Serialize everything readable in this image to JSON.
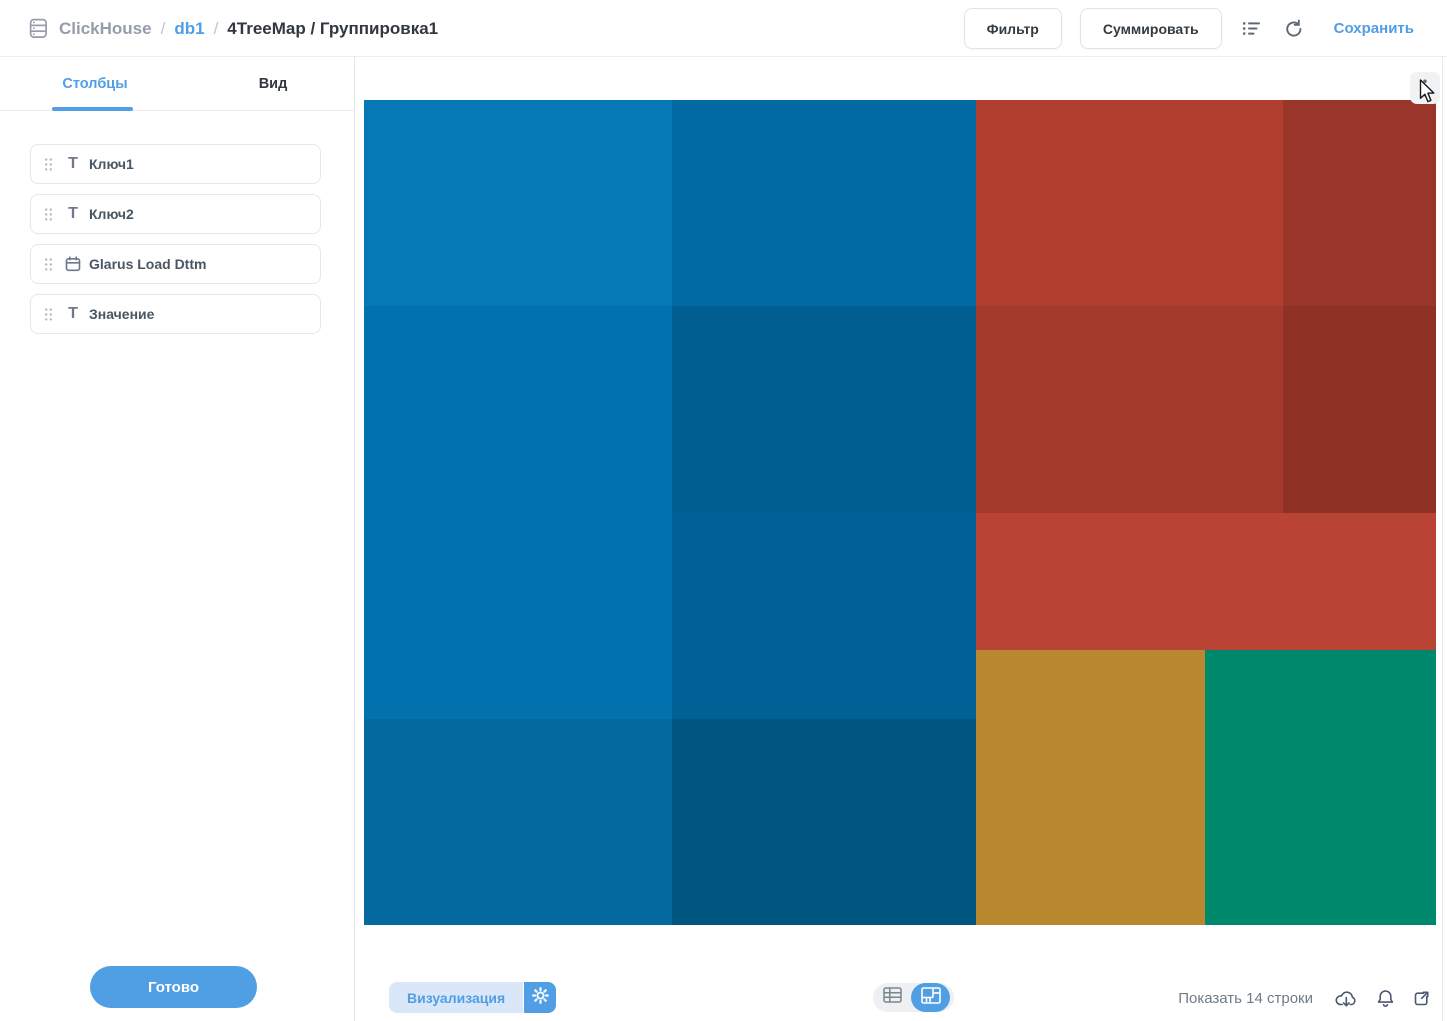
{
  "header": {
    "breadcrumb": {
      "database": "ClickHouse",
      "separator": "/",
      "schema": "db1",
      "question_title": "4TreeMap / Группировка1"
    },
    "filter_label": "Фильтр",
    "summarize_label": "Суммировать",
    "save_label": "Сохранить"
  },
  "sidebar": {
    "tabs": [
      {
        "label": "Столбцы",
        "active": true
      },
      {
        "label": "Вид",
        "active": false
      }
    ],
    "fields": [
      {
        "label": "Ключ1",
        "type": "text"
      },
      {
        "label": "Ключ2",
        "type": "text"
      },
      {
        "label": "Glarus Load Dttm",
        "type": "datetime"
      },
      {
        "label": "Значение",
        "type": "text"
      }
    ],
    "done_label": "Готово"
  },
  "footer": {
    "visualization_label": "Визуализация",
    "rows_label": "Показать 14 строки"
  },
  "colors": {
    "brand": "#509ee3",
    "brand_light": "#d9e7f8",
    "text_dark": "#32383e",
    "text_medium": "#4a5664",
    "text_gray": "#969cac",
    "border": "#e3e6ea"
  },
  "chart_data": {
    "type": "treemap",
    "rows_shown": 14,
    "cells": [
      {
        "id": "blue1-top",
        "color": "#0579B6",
        "x": 0,
        "y": 0,
        "w": 0.2873,
        "h": 0.2497,
        "area_pct": 7.2
      },
      {
        "id": "blue1-mid",
        "color": "#0272AE",
        "x": 0,
        "y": 0.2497,
        "w": 0.2873,
        "h": 0.5006,
        "area_pct": 14.4
      },
      {
        "id": "blue1-bottom",
        "color": "#04699F",
        "x": 0,
        "y": 0.7503,
        "w": 0.2873,
        "h": 0.2497,
        "area_pct": 7.2
      },
      {
        "id": "blue2-r1",
        "color": "#016AA2",
        "x": 0.2873,
        "y": 0,
        "w": 0.2836,
        "h": 0.2497,
        "area_pct": 7.1
      },
      {
        "id": "blue2-r2",
        "color": "#005E90",
        "x": 0.2873,
        "y": 0.2497,
        "w": 0.2836,
        "h": 0.2509,
        "area_pct": 7.1
      },
      {
        "id": "blue2-r3",
        "color": "#006197",
        "x": 0.2873,
        "y": 0.5006,
        "w": 0.2836,
        "h": 0.2497,
        "area_pct": 7.1
      },
      {
        "id": "blue2-r4",
        "color": "#005681",
        "x": 0.2873,
        "y": 0.7503,
        "w": 0.2836,
        "h": 0.2497,
        "area_pct": 7.1
      },
      {
        "id": "red1-top",
        "color": "#B03F2F",
        "x": 0.5709,
        "y": 0,
        "w": 0.2864,
        "h": 0.2497,
        "area_pct": 7.2
      },
      {
        "id": "red1-bottom",
        "color": "#A43A2B",
        "x": 0.5709,
        "y": 0.2497,
        "w": 0.2864,
        "h": 0.2509,
        "area_pct": 7.2
      },
      {
        "id": "red2-top",
        "color": "#9A352A",
        "x": 0.8573,
        "y": 0,
        "w": 0.1427,
        "h": 0.2497,
        "area_pct": 3.6
      },
      {
        "id": "red2-bottom",
        "color": "#8F3125",
        "x": 0.8573,
        "y": 0.2497,
        "w": 0.1427,
        "h": 0.2509,
        "area_pct": 3.6
      },
      {
        "id": "red-strip",
        "color": "#B94334",
        "x": 0.5709,
        "y": 0.5006,
        "w": 0.4291,
        "h": 0.1661,
        "area_pct": 7.1
      },
      {
        "id": "orange",
        "color": "#B8872E",
        "x": 0.5709,
        "y": 0.6667,
        "w": 0.2136,
        "h": 0.3333,
        "area_pct": 7.1
      },
      {
        "id": "teal",
        "color": "#00886D",
        "x": 0.7845,
        "y": 0.6667,
        "w": 0.2155,
        "h": 0.3333,
        "area_pct": 7.2
      }
    ]
  }
}
